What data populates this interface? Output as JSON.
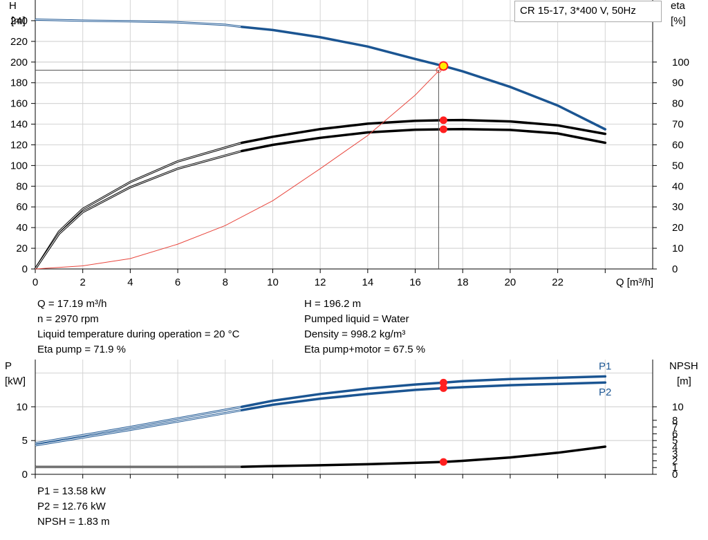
{
  "legend_box": "CR 15-17, 3*400 V, 50Hz",
  "colors": {
    "head": "#1b5592",
    "system": "#e8453c",
    "eta": "#000000",
    "grid": "#d4d4d4",
    "duty_marker": "#ffee00",
    "marker": "#ff1f1f"
  },
  "info": {
    "q": "Q = 17.19 m³/h",
    "n": "n = 2970 rpm",
    "temp": "Liquid temperature during operation = 20 °C",
    "eta_pump": "Eta pump = 71.9 %",
    "h": "H = 196.2 m",
    "liquid": "Pumped liquid = Water",
    "density": "Density = 998.2 kg/m³",
    "eta_total": "Eta pump+motor = 67.5 %"
  },
  "bottom_info": {
    "p1": "P1 = 13.58 kW",
    "p2": "P2 = 12.76 kW",
    "npsh": "NPSH = 1.83 m"
  },
  "chart_data": [
    {
      "type": "line",
      "id": "head-eta",
      "x_title": "Q [m³/h]",
      "left_axis_title": [
        "H",
        "[m]"
      ],
      "right_axis_title": [
        "eta",
        "[%]"
      ],
      "xlim": [
        0,
        26
      ],
      "x_ticks": [
        0,
        2,
        4,
        6,
        8,
        10,
        12,
        14,
        16,
        18,
        20,
        22
      ],
      "ylim_left": [
        0,
        260
      ],
      "y_ticks_left": [
        0,
        20,
        40,
        60,
        80,
        100,
        120,
        140,
        160,
        180,
        200,
        220,
        240
      ],
      "ylim_right": [
        0,
        130
      ],
      "y_ticks_right": [
        0,
        10,
        20,
        30,
        40,
        50,
        60,
        70,
        80,
        90,
        100
      ],
      "grid": true,
      "duty_point": {
        "q": 17.19,
        "h": 196.2
      },
      "series": [
        {
          "key": "head",
          "axis": "left",
          "style": "head",
          "x": [
            0,
            2,
            4,
            6,
            8,
            8.7,
            10,
            12,
            14,
            16,
            17.19,
            18,
            20,
            22,
            24
          ],
          "y": [
            241,
            240,
            239.5,
            238.5,
            236,
            234,
            231,
            224,
            215,
            203,
            196.2,
            191,
            176,
            158,
            135
          ],
          "op_from": 8.7
        },
        {
          "key": "eta-pump",
          "axis": "right",
          "style": "eta",
          "x": [
            0,
            1,
            2,
            4,
            6,
            8.7,
            10,
            12,
            14,
            16,
            17.19,
            18,
            20,
            22,
            24
          ],
          "y": [
            0,
            18,
            29,
            42,
            52,
            61,
            63.9,
            67.6,
            70.2,
            71.6,
            71.9,
            72.0,
            71.3,
            69.4,
            65.3
          ],
          "op_from": 8.7
        },
        {
          "key": "eta-total",
          "axis": "right",
          "style": "eta",
          "x": [
            0,
            1,
            2,
            4,
            6,
            8.7,
            10,
            12,
            14,
            16,
            17.19,
            18,
            20,
            22,
            24
          ],
          "y": [
            0,
            17,
            27.5,
            39.5,
            48.5,
            57,
            60,
            63.4,
            66,
            67.3,
            67.5,
            67.6,
            67.2,
            65.5,
            61
          ],
          "op_from": 8.7
        },
        {
          "key": "system",
          "axis": "left",
          "style": "system",
          "x": [
            0,
            2,
            4,
            6,
            8,
            10,
            12,
            14,
            16,
            17.19
          ],
          "y": [
            0,
            3,
            10,
            24,
            42,
            66,
            97,
            129,
            168,
            196.2
          ]
        }
      ],
      "markers": [
        {
          "axis": "right",
          "x": 17.19,
          "y": 71.9
        },
        {
          "axis": "right",
          "x": 17.19,
          "y": 67.5
        }
      ]
    },
    {
      "type": "line",
      "id": "power-npsh",
      "left_axis_title": [
        "P",
        "[kW]"
      ],
      "right_axis_title": [
        "NPSH",
        "[m]"
      ],
      "xlim": [
        0,
        26
      ],
      "ylim_left": [
        0,
        17
      ],
      "y_ticks_left": [
        0,
        5,
        10
      ],
      "ylim_right": [
        0,
        17
      ],
      "y_ticks_right": [
        0,
        1,
        2,
        3,
        4,
        5,
        6,
        7,
        8,
        10
      ],
      "grid": true,
      "series": [
        {
          "key": "p1",
          "name": "P1",
          "axis": "left",
          "style": "head",
          "x": [
            0,
            4,
            8.7,
            10,
            12,
            14,
            16,
            17.19,
            18,
            20,
            22,
            24
          ],
          "y": [
            4.6,
            7.0,
            10.0,
            10.9,
            11.9,
            12.7,
            13.3,
            13.58,
            13.8,
            14.1,
            14.3,
            14.5
          ],
          "op_from": 8.7
        },
        {
          "key": "p2",
          "name": "P2",
          "axis": "left",
          "style": "head",
          "x": [
            0,
            4,
            8.7,
            10,
            12,
            14,
            16,
            17.19,
            18,
            20,
            22,
            24
          ],
          "y": [
            4.3,
            6.6,
            9.5,
            10.3,
            11.2,
            11.9,
            12.5,
            12.76,
            12.9,
            13.2,
            13.4,
            13.6
          ],
          "op_from": 8.7
        },
        {
          "key": "npsh",
          "axis": "right",
          "style": "eta",
          "x": [
            0,
            4,
            8.7,
            10,
            12,
            14,
            16,
            17.19,
            18,
            20,
            22,
            24
          ],
          "y": [
            1.1,
            1.1,
            1.12,
            1.22,
            1.34,
            1.5,
            1.7,
            1.83,
            2.0,
            2.5,
            3.2,
            4.1
          ],
          "op_from": 8.7
        }
      ],
      "markers": [
        {
          "axis": "left",
          "x": 17.19,
          "y": 13.58
        },
        {
          "axis": "left",
          "x": 17.19,
          "y": 12.76
        },
        {
          "axis": "right",
          "x": 17.19,
          "y": 1.83
        }
      ]
    }
  ]
}
